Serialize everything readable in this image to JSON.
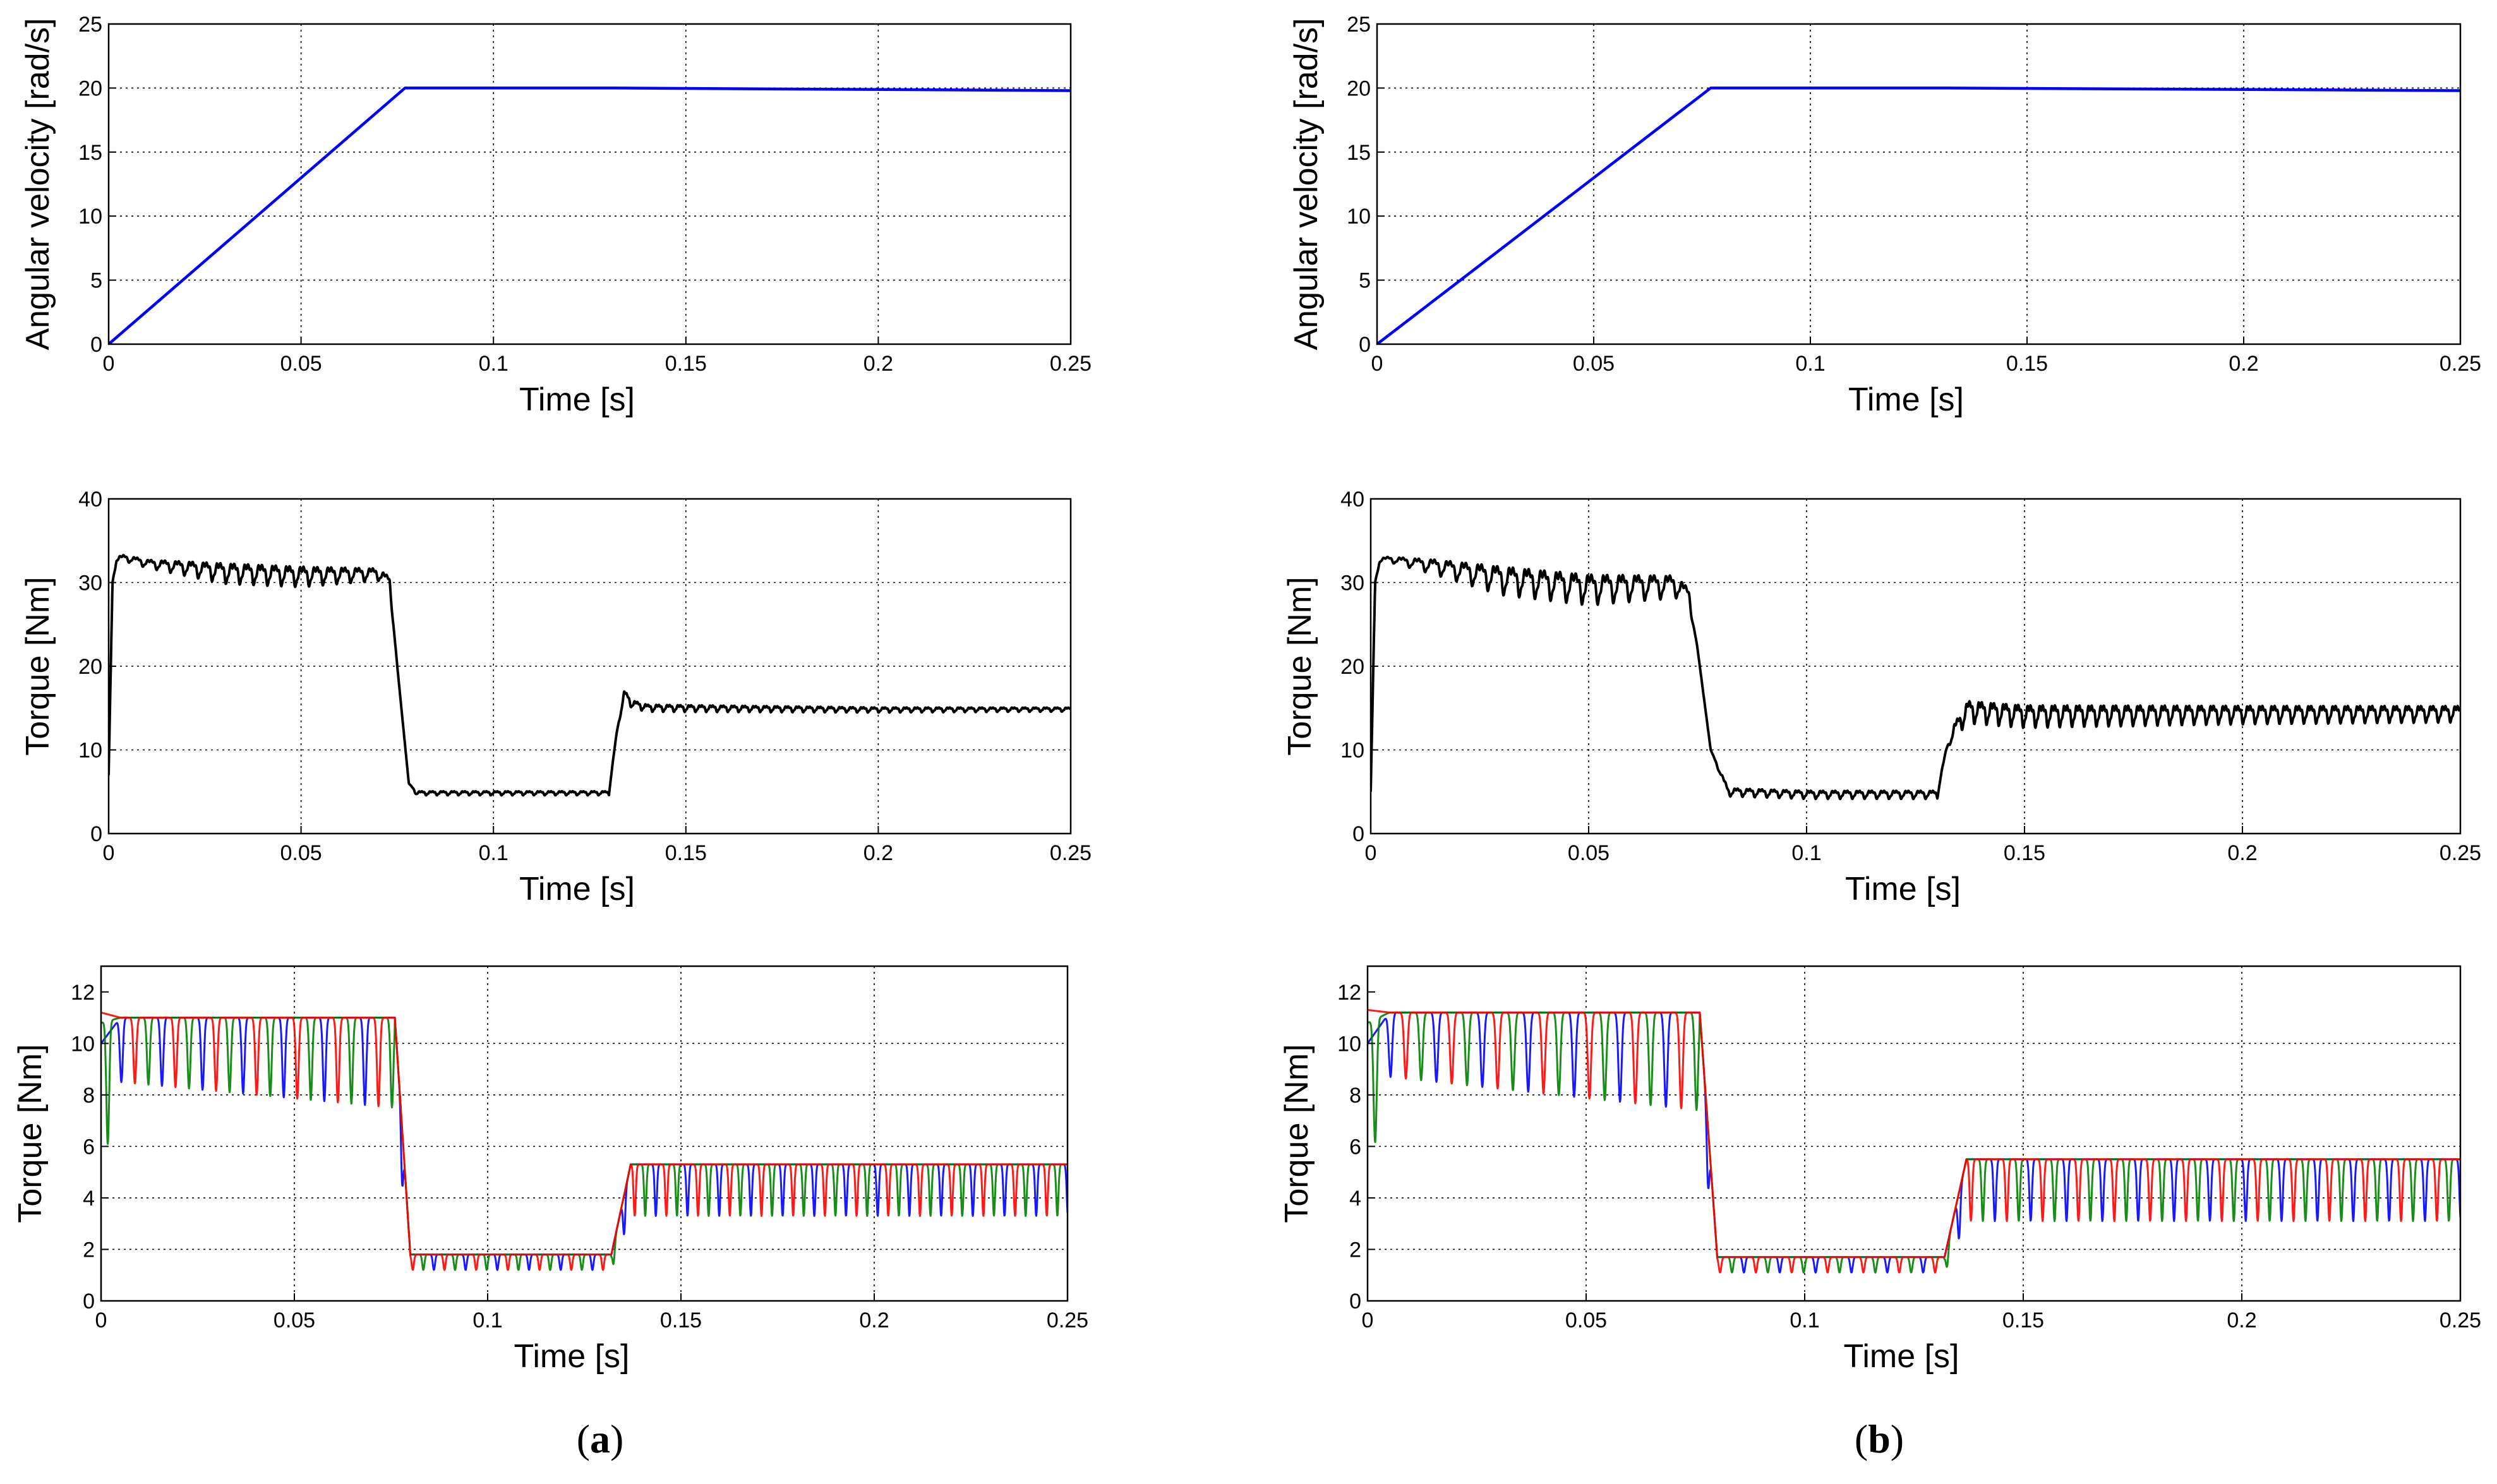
{
  "panel_labels": [
    {
      "open": "(",
      "letter": "a",
      "close": ")"
    },
    {
      "open": "(",
      "letter": "b",
      "close": ")"
    }
  ],
  "colors": {
    "velocity": "#0000ff",
    "torque": "#000000",
    "phase_a": "#0000ff",
    "phase_b": "#008000",
    "phase_c": "#ff0000",
    "grid": "#000000"
  },
  "chart_data": [
    {
      "type": "line",
      "column": "a",
      "row": "velocity",
      "xlabel": "Time [s]",
      "ylabel": "Angular velocity [rad/s]",
      "xlim": [
        0,
        0.25
      ],
      "ylim": [
        0,
        25
      ],
      "xticks": [
        0,
        0.05,
        0.1,
        0.15,
        0.2,
        0.25
      ],
      "xtick_labels": [
        "0",
        "0.05",
        "0.1",
        "0.15",
        "0.2",
        "0.25"
      ],
      "yticks": [
        0,
        5,
        10,
        15,
        20,
        25
      ],
      "ytick_labels": [
        "0",
        "5",
        "10",
        "15",
        "20",
        "25"
      ],
      "grid": true,
      "series": [
        {
          "color": "#0000ff",
          "x": [
            0,
            0.077,
            0.132,
            0.25
          ],
          "y": [
            0,
            20,
            20,
            19.8
          ]
        }
      ]
    },
    {
      "type": "line",
      "column": "a",
      "row": "torque",
      "xlabel": "Time [s]",
      "ylabel": "Torque [Nm]",
      "xlim": [
        0,
        0.25
      ],
      "ylim": [
        0,
        40
      ],
      "xticks": [
        0,
        0.05,
        0.1,
        0.15,
        0.2,
        0.25
      ],
      "xtick_labels": [
        "0",
        "0.05",
        "0.1",
        "0.15",
        "0.2",
        "0.25"
      ],
      "yticks": [
        0,
        10,
        20,
        30,
        40
      ],
      "ytick_labels": [
        "0",
        "10",
        "20",
        "30",
        "40"
      ],
      "grid": true,
      "series": [
        {
          "color": "#000000",
          "x": [
            0,
            0.001,
            0.002,
            0.004,
            0.01,
            0.03,
            0.05,
            0.07,
            0.073,
            0.075,
            0.078,
            0.08,
            0.1,
            0.13,
            0.132,
            0.134,
            0.136,
            0.14,
            0.2,
            0.25
          ],
          "y": [
            7,
            30,
            33,
            33.2,
            32.6,
            32,
            31.6,
            31.5,
            30.5,
            20,
            6,
            5,
            5,
            5,
            12,
            17,
            15.8,
            15.3,
            15,
            15
          ],
          "ripple": [
            0,
            0,
            0.6,
            0.6,
            0.8,
            2.0,
            2.0,
            1.2,
            1.0,
            0,
            0,
            0.4,
            0.4,
            0.4,
            0,
            0.8,
            0.8,
            0.7,
            0.5,
            0.4
          ]
        }
      ]
    },
    {
      "type": "line",
      "column": "a",
      "row": "phase",
      "xlabel": "Time [s]",
      "ylabel": "Torque [Nm]",
      "xlim": [
        0,
        0.25
      ],
      "ylim": [
        0,
        13
      ],
      "xticks": [
        0,
        0.05,
        0.1,
        0.15,
        0.2,
        0.25
      ],
      "xtick_labels": [
        "0",
        "0.05",
        "0.1",
        "0.15",
        "0.2",
        "0.25"
      ],
      "yticks": [
        0,
        2,
        4,
        6,
        8,
        10,
        12
      ],
      "ytick_labels": [
        "0",
        "2",
        "4",
        "6",
        "8",
        "10",
        "12"
      ],
      "grid": true,
      "series": [
        {
          "color": "#0000ff",
          "x": [
            0,
            0.005,
            0.076,
            0.08,
            0.132,
            0.137,
            0.25
          ],
          "y": [
            10,
            11,
            11,
            1.8,
            1.8,
            5.3,
            5.3
          ],
          "dip": [
            6,
            2.5,
            3.5,
            0.6,
            0.6,
            2.0,
            2.0
          ]
        },
        {
          "color": "#008000",
          "x": [
            0,
            0.005,
            0.076,
            0.08,
            0.132,
            0.137,
            0.25
          ],
          "y": [
            10.8,
            11,
            11,
            1.8,
            1.8,
            5.3,
            5.3
          ],
          "dip": [
            6,
            2.5,
            3.5,
            0.6,
            0.6,
            2.0,
            2.0
          ]
        },
        {
          "color": "#ff0000",
          "x": [
            0,
            0.005,
            0.076,
            0.08,
            0.132,
            0.137,
            0.25
          ],
          "y": [
            11.2,
            11,
            11,
            1.8,
            1.8,
            5.3,
            5.3
          ],
          "dip": [
            6,
            2.5,
            3.5,
            0.6,
            0.6,
            2.0,
            2.0
          ]
        }
      ]
    },
    {
      "type": "line",
      "column": "b",
      "row": "velocity",
      "xlabel": "Time [s]",
      "ylabel": "Angular velocity [rad/s]",
      "xlim": [
        0,
        0.25
      ],
      "ylim": [
        0,
        25
      ],
      "xticks": [
        0,
        0.05,
        0.1,
        0.15,
        0.2,
        0.25
      ],
      "xtick_labels": [
        "0",
        "0.05",
        "0.1",
        "0.15",
        "0.2",
        "0.25"
      ],
      "yticks": [
        0,
        5,
        10,
        15,
        20,
        25
      ],
      "ytick_labels": [
        "0",
        "5",
        "10",
        "15",
        "20",
        "25"
      ],
      "grid": true,
      "series": [
        {
          "color": "#0000ff",
          "x": [
            0,
            0.077,
            0.132,
            0.25
          ],
          "y": [
            0,
            20,
            20,
            19.8
          ]
        }
      ]
    },
    {
      "type": "line",
      "column": "b",
      "row": "torque",
      "xlabel": "Time [s]",
      "ylabel": "Torque [Nm]",
      "xlim": [
        0,
        0.25
      ],
      "ylim": [
        0,
        40
      ],
      "xticks": [
        0,
        0.05,
        0.1,
        0.15,
        0.2,
        0.25
      ],
      "xtick_labels": [
        "0",
        "0.05",
        "0.1",
        "0.15",
        "0.2",
        "0.25"
      ],
      "yticks": [
        0,
        10,
        20,
        30,
        40
      ],
      "ytick_labels": [
        "0",
        "10",
        "20",
        "30",
        "40"
      ],
      "grid": true,
      "series": [
        {
          "color": "#000000",
          "x": [
            0,
            0.001,
            0.002,
            0.004,
            0.015,
            0.03,
            0.05,
            0.07,
            0.073,
            0.075,
            0.078,
            0.082,
            0.1,
            0.13,
            0.132,
            0.134,
            0.137,
            0.15,
            0.2,
            0.25
          ],
          "y": [
            5,
            30,
            32.8,
            33,
            32.5,
            31.5,
            30.5,
            30.5,
            29,
            22,
            10,
            5.3,
            5,
            5,
            10,
            13,
            15.5,
            15,
            15,
            15
          ],
          "ripple": [
            0,
            0,
            0.5,
            0.5,
            1.5,
            2.8,
            3.0,
            2.2,
            1.5,
            0,
            0,
            0.8,
            0.8,
            0.8,
            0,
            1.5,
            2.2,
            2.2,
            1.8,
            1.6
          ]
        }
      ]
    },
    {
      "type": "line",
      "column": "b",
      "row": "phase",
      "xlabel": "Time [s]",
      "ylabel": "Torque [Nm]",
      "xlim": [
        0,
        0.25
      ],
      "ylim": [
        0,
        13
      ],
      "xticks": [
        0,
        0.05,
        0.1,
        0.15,
        0.2,
        0.25
      ],
      "xtick_labels": [
        "0",
        "0.05",
        "0.1",
        "0.15",
        "0.2",
        "0.25"
      ],
      "yticks": [
        0,
        2,
        4,
        6,
        8,
        10,
        12
      ],
      "ytick_labels": [
        "0",
        "2",
        "4",
        "6",
        "8",
        "10",
        "12"
      ],
      "grid": true,
      "series": [
        {
          "color": "#0000ff",
          "x": [
            0,
            0.005,
            0.076,
            0.08,
            0.132,
            0.137,
            0.25
          ],
          "y": [
            10,
            11.2,
            11.2,
            1.7,
            1.7,
            5.5,
            5.5
          ],
          "dip": [
            6,
            2.5,
            3.8,
            0.6,
            0.6,
            2.4,
            2.4
          ]
        },
        {
          "color": "#008000",
          "x": [
            0,
            0.005,
            0.076,
            0.08,
            0.132,
            0.137,
            0.25
          ],
          "y": [
            10.8,
            11.2,
            11.2,
            1.7,
            1.7,
            5.5,
            5.5
          ],
          "dip": [
            6,
            2.5,
            3.8,
            0.6,
            0.6,
            2.4,
            2.4
          ]
        },
        {
          "color": "#ff0000",
          "x": [
            0,
            0.005,
            0.076,
            0.08,
            0.132,
            0.137,
            0.25
          ],
          "y": [
            11.3,
            11.2,
            11.2,
            1.7,
            1.7,
            5.5,
            5.5
          ],
          "dip": [
            6,
            2.5,
            3.8,
            0.6,
            0.6,
            2.4,
            2.4
          ]
        }
      ]
    }
  ]
}
